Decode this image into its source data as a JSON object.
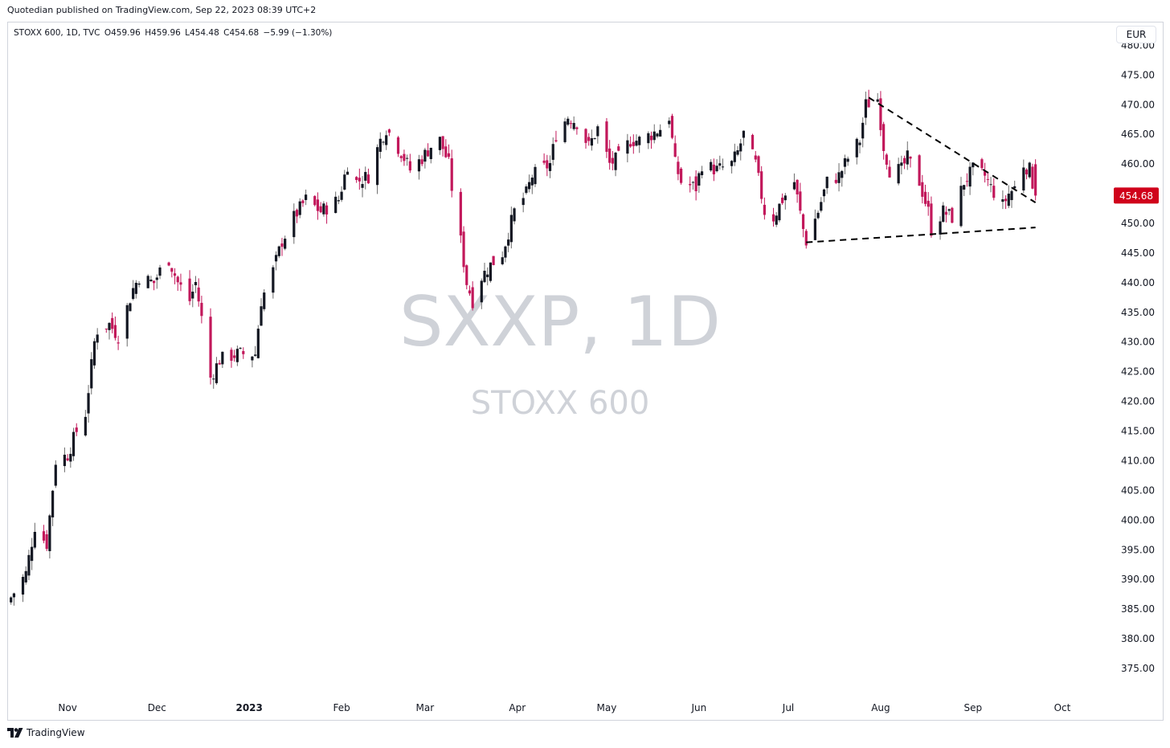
{
  "header": {
    "published": "Quotedian published on TradingView.com, Sep 22, 2023 08:39 UTC+2"
  },
  "legend": {
    "symbol": "STOXX 600, 1D, TVC",
    "open": "O459.96",
    "high": "H459.96",
    "low": "L454.48",
    "close": "C454.68",
    "change": "−5.99 (−1.30%)"
  },
  "currency": "EUR",
  "watermark": {
    "ticker": "SXXP, 1D",
    "name": "STOXX 600"
  },
  "footer": {
    "brand": "TradingView"
  },
  "colors": {
    "up": "#131722",
    "down": "#c2185b",
    "last_price_bg": "#d0021b",
    "watermark": "#cfd2d8",
    "trendline": "#000000"
  },
  "chart_data": {
    "type": "candlestick",
    "last_price": 454.68,
    "last_price_label": "454.68",
    "ylim": [
      370,
      480
    ],
    "y_ticks": [
      375,
      380,
      385,
      390,
      395,
      400,
      405,
      410,
      415,
      420,
      425,
      430,
      435,
      440,
      445,
      450,
      455,
      460,
      465,
      470,
      475,
      480
    ],
    "x_ticks": [
      "Nov",
      "Dec",
      "2023",
      "Feb",
      "Mar",
      "Apr",
      "May",
      "Jun",
      "Jul",
      "Aug",
      "Sep",
      "Oct"
    ],
    "x_tick_dates": [
      "2022-11-01",
      "2022-12-01",
      "2023-01-01",
      "2023-02-01",
      "2023-03-01",
      "2023-04-01",
      "2023-05-01",
      "2023-06-01",
      "2023-07-01",
      "2023-08-01",
      "2023-09-01",
      "2023-10-01"
    ],
    "xlim": [
      "2022-10-12",
      "2023-10-18"
    ],
    "trendlines": [
      {
        "name": "upper",
        "from": [
          "2023-07-28",
          471.2
        ],
        "to": [
          "2023-09-22",
          453.5
        ]
      },
      {
        "name": "lower",
        "from": [
          "2023-07-07",
          446.8
        ],
        "to": [
          "2023-09-22",
          449.3
        ]
      }
    ],
    "anchors": [
      [
        "2022-10-13",
        387
      ],
      [
        "2022-10-18",
        391
      ],
      [
        "2022-10-21",
        399
      ],
      [
        "2022-10-25",
        396
      ],
      [
        "2022-10-28",
        410
      ],
      [
        "2022-11-01",
        411
      ],
      [
        "2022-11-04",
        415
      ],
      [
        "2022-11-07",
        418
      ],
      [
        "2022-11-10",
        430
      ],
      [
        "2022-11-11",
        432
      ],
      [
        "2022-11-15",
        433
      ],
      [
        "2022-11-18",
        431
      ],
      [
        "2022-11-23",
        439
      ],
      [
        "2022-11-25",
        441
      ],
      [
        "2022-11-30",
        440
      ],
      [
        "2022-12-02",
        442
      ],
      [
        "2022-12-05",
        444
      ],
      [
        "2022-12-08",
        440
      ],
      [
        "2022-12-12",
        437
      ],
      [
        "2022-12-14",
        440
      ],
      [
        "2022-12-16",
        434
      ],
      [
        "2022-12-19",
        424
      ],
      [
        "2022-12-22",
        427
      ],
      [
        "2022-12-28",
        428
      ],
      [
        "2023-01-03",
        428
      ],
      [
        "2023-01-05",
        437
      ],
      [
        "2023-01-09",
        442
      ],
      [
        "2023-01-12",
        447
      ],
      [
        "2023-01-16",
        451
      ],
      [
        "2023-01-20",
        454
      ],
      [
        "2023-01-25",
        452
      ],
      [
        "2023-01-31",
        454
      ],
      [
        "2023-02-03",
        460
      ],
      [
        "2023-02-06",
        457
      ],
      [
        "2023-02-10",
        458
      ],
      [
        "2023-02-14",
        464
      ],
      [
        "2023-02-16",
        466
      ],
      [
        "2023-02-21",
        462
      ],
      [
        "2023-02-24",
        459
      ],
      [
        "2023-02-28",
        461
      ],
      [
        "2023-03-03",
        463
      ],
      [
        "2023-03-06",
        464
      ],
      [
        "2023-03-09",
        460
      ],
      [
        "2023-03-10",
        456
      ],
      [
        "2023-03-13",
        447
      ],
      [
        "2023-03-15",
        440
      ],
      [
        "2023-03-17",
        437
      ],
      [
        "2023-03-20",
        441
      ],
      [
        "2023-03-23",
        443
      ],
      [
        "2023-03-27",
        445
      ],
      [
        "2023-03-31",
        452
      ],
      [
        "2023-04-04",
        455
      ],
      [
        "2023-04-06",
        458
      ],
      [
        "2023-04-12",
        460
      ],
      [
        "2023-04-14",
        465
      ],
      [
        "2023-04-18",
        468
      ],
      [
        "2023-04-21",
        467
      ],
      [
        "2023-04-25",
        463
      ],
      [
        "2023-04-28",
        466
      ],
      [
        "2023-05-02",
        460
      ],
      [
        "2023-05-05",
        461
      ],
      [
        "2023-05-09",
        464
      ],
      [
        "2023-05-12",
        464
      ],
      [
        "2023-05-16",
        465
      ],
      [
        "2023-05-19",
        466
      ],
      [
        "2023-05-22",
        468
      ],
      [
        "2023-05-24",
        460
      ],
      [
        "2023-05-26",
        457
      ],
      [
        "2023-05-31",
        456
      ],
      [
        "2023-06-02",
        460
      ],
      [
        "2023-06-07",
        459
      ],
      [
        "2023-06-12",
        460
      ],
      [
        "2023-06-14",
        462
      ],
      [
        "2023-06-16",
        465
      ],
      [
        "2023-06-20",
        460
      ],
      [
        "2023-06-23",
        452
      ],
      [
        "2023-06-26",
        451
      ],
      [
        "2023-06-29",
        454
      ],
      [
        "2023-07-03",
        457
      ],
      [
        "2023-07-06",
        449
      ],
      [
        "2023-07-07",
        447
      ],
      [
        "2023-07-11",
        452
      ],
      [
        "2023-07-14",
        457
      ],
      [
        "2023-07-18",
        458
      ],
      [
        "2023-07-21",
        461
      ],
      [
        "2023-07-25",
        464
      ],
      [
        "2023-07-27",
        470
      ],
      [
        "2023-07-31",
        471
      ],
      [
        "2023-08-02",
        463
      ],
      [
        "2023-08-04",
        459
      ],
      [
        "2023-08-08",
        459
      ],
      [
        "2023-08-10",
        461
      ],
      [
        "2023-08-14",
        457
      ],
      [
        "2023-08-17",
        452
      ],
      [
        "2023-08-18",
        449
      ],
      [
        "2023-08-22",
        452
      ],
      [
        "2023-08-25",
        451
      ],
      [
        "2023-08-29",
        457
      ],
      [
        "2023-09-01",
        459
      ],
      [
        "2023-09-05",
        458
      ],
      [
        "2023-09-07",
        456
      ],
      [
        "2023-09-11",
        453
      ],
      [
        "2023-09-13",
        455
      ],
      [
        "2023-09-15",
        456
      ],
      [
        "2023-09-18",
        460
      ],
      [
        "2023-09-20",
        459
      ],
      [
        "2023-09-22",
        454.68
      ]
    ]
  }
}
